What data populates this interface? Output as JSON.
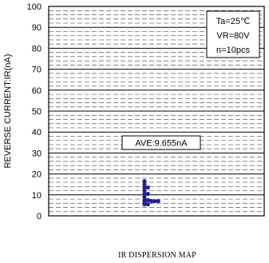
{
  "chart_data": {
    "type": "scatter",
    "title": "IR DISPERSION MAP",
    "ylabel": "REVERSE CURRENT:IR(nA)",
    "xlabel": "",
    "ylim": [
      0,
      100
    ],
    "yticks": [
      "0",
      "10",
      "20",
      "30",
      "40",
      "50",
      "60",
      "70",
      "80",
      "90",
      "100"
    ],
    "grid": true,
    "conditions": [
      "Ta=25℃",
      "VR=80V",
      "n=10pcs"
    ],
    "average_label": "AVE:9.655nA",
    "point_color": "#1f1f9a",
    "points": [
      {
        "col": 0,
        "y": 5.5
      },
      {
        "col": 0,
        "y": 6.5
      },
      {
        "col": 0,
        "y": 7.5
      },
      {
        "col": 0,
        "y": 9
      },
      {
        "col": 0,
        "y": 10.5
      },
      {
        "col": 0,
        "y": 12
      },
      {
        "col": 0,
        "y": 13.5
      },
      {
        "col": 0,
        "y": 15
      },
      {
        "col": 0,
        "y": 16.5
      },
      {
        "col": 1,
        "y": 5.5
      },
      {
        "col": 1,
        "y": 7.5
      },
      {
        "col": 1,
        "y": 10.5
      },
      {
        "col": 1,
        "y": 13.5
      },
      {
        "col": 2,
        "y": 7
      },
      {
        "col": 3,
        "y": 7
      },
      {
        "col": 4,
        "y": 7
      }
    ]
  }
}
